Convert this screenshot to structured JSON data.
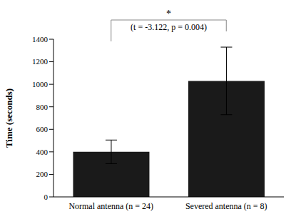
{
  "chart_data": {
    "type": "bar",
    "categories": [
      "Normal antenna (n = 24)",
      "Severed antenna (n = 8)"
    ],
    "values": [
      400,
      1030
    ],
    "errors": [
      105,
      300
    ],
    "color": "#1a1a1a",
    "y_label": "Time (seconds)",
    "ylim": [
      0,
      1400
    ],
    "yticks": [
      0,
      200,
      400,
      600,
      800,
      1000,
      1200,
      1400
    ],
    "grid": false,
    "annotations": [
      "*",
      "(t = -3.122, p = 0.004)"
    ]
  }
}
